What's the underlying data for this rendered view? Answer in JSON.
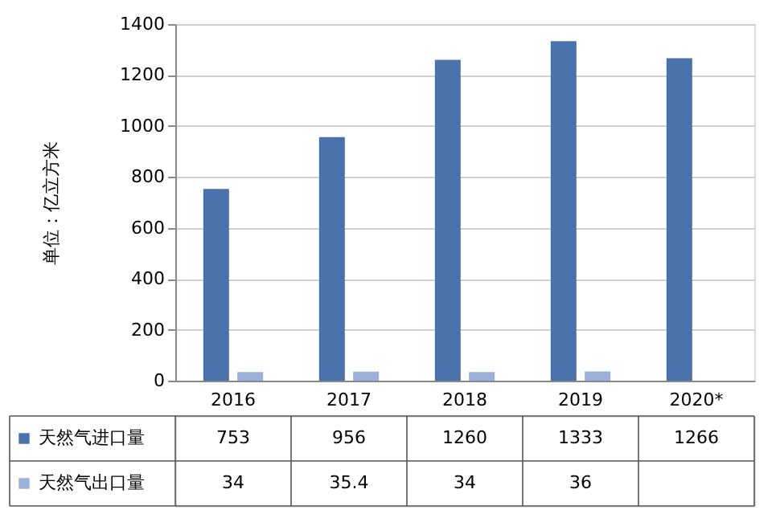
{
  "chart_data": {
    "type": "bar",
    "ylabel": "单位：亿立方米",
    "categories": [
      "2016",
      "2017",
      "2018",
      "2019",
      "2020*"
    ],
    "series": [
      {
        "name": "天然气进口量",
        "color": "#4a72ab",
        "values": [
          753,
          956,
          1260,
          1333,
          1266
        ]
      },
      {
        "name": "天然气出口量",
        "color": "#9bb1d8",
        "values": [
          34,
          35.4,
          34,
          36,
          null
        ]
      }
    ],
    "ylim": [
      0,
      1400
    ],
    "yticks": [
      0,
      200,
      400,
      600,
      800,
      1000,
      1200,
      1400
    ],
    "grid": "y",
    "legend": "bottom",
    "data_labels": true
  }
}
